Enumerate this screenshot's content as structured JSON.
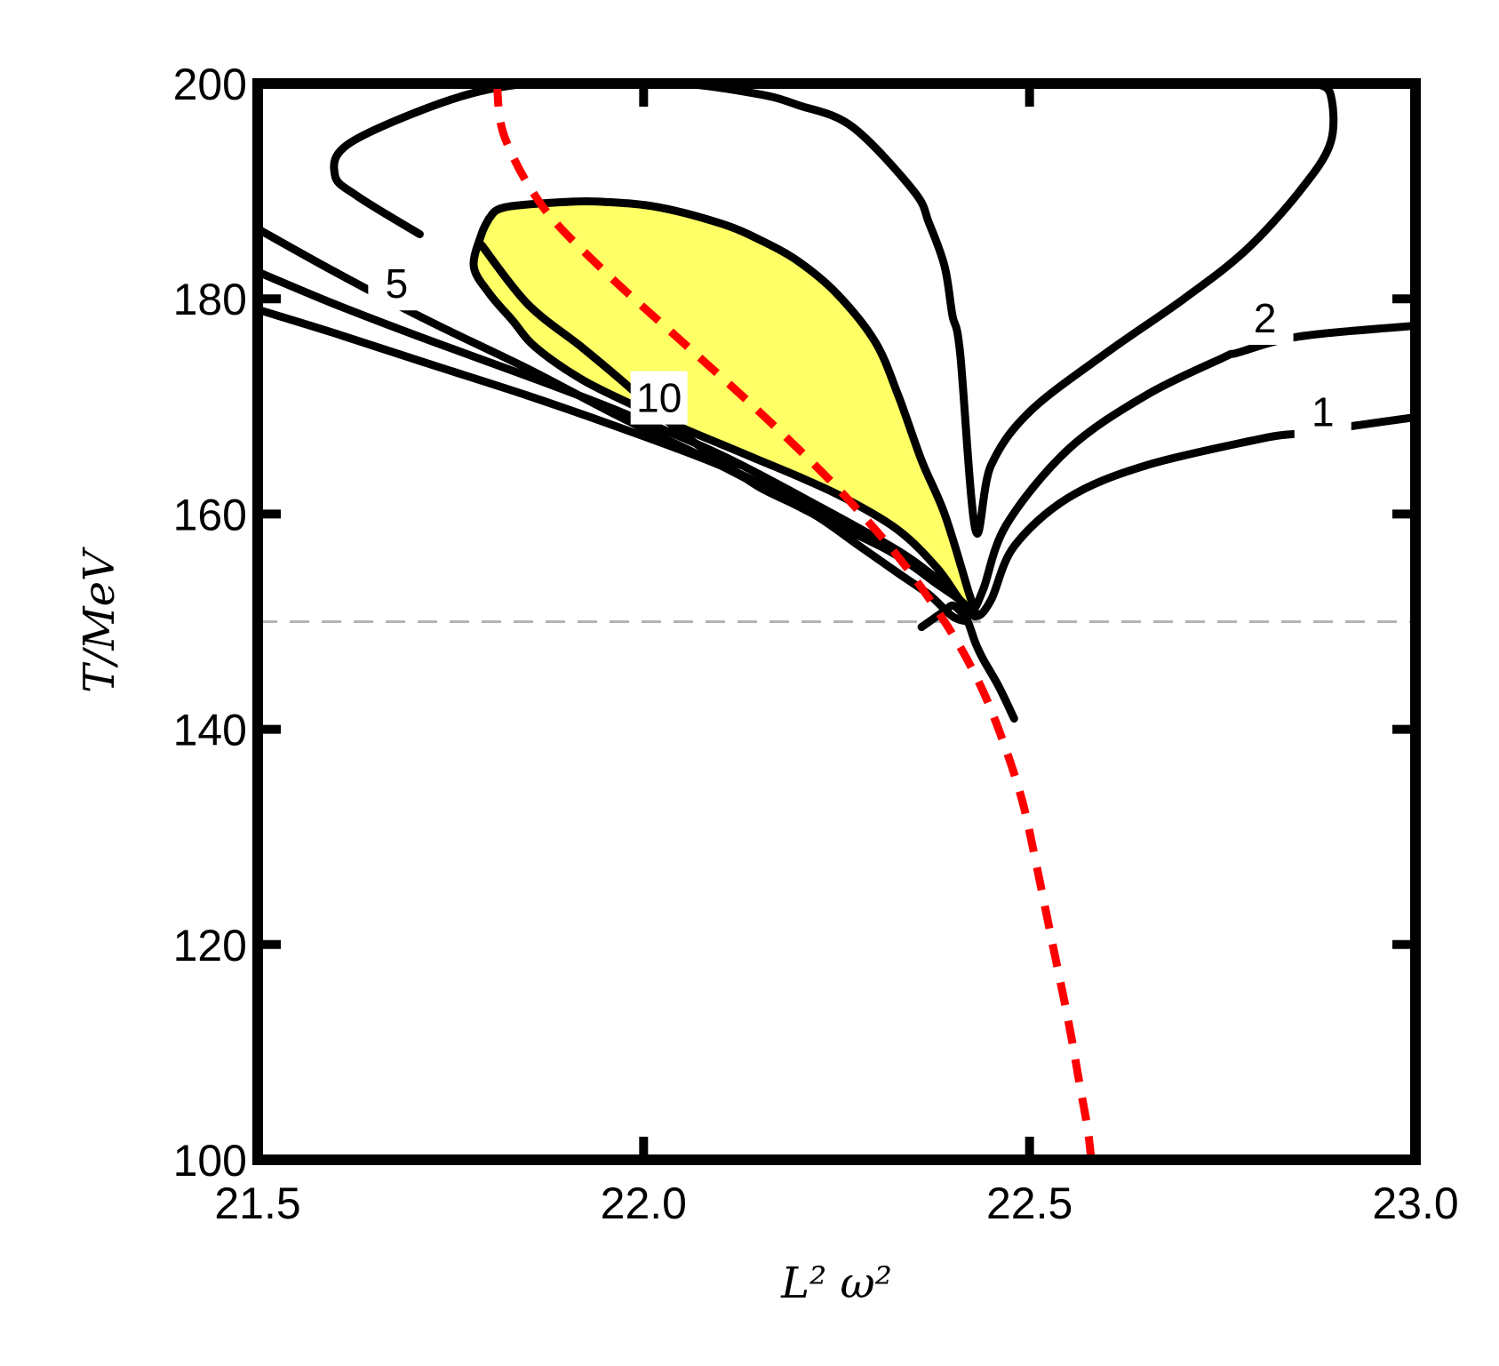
{
  "chart_data": {
    "type": "contour",
    "xlabel": "L² ω²",
    "ylabel": "T/MeV",
    "xlim": [
      21.5,
      23.0
    ],
    "ylim": [
      100,
      200
    ],
    "x_ticks": [
      "21.5",
      "22.0",
      "22.5",
      "23.0"
    ],
    "y_ticks": [
      "100",
      "120",
      "140",
      "160",
      "180",
      "200"
    ],
    "reference_line": {
      "y": 150,
      "style": "dashed",
      "color": "#b3b3b3"
    },
    "colors": {
      "contour": "#000000",
      "critical_curve": "#ff0000",
      "fill": "#ffff66",
      "reference": "#b3b3b3"
    },
    "series": [
      {
        "kind": "contour",
        "level": "1",
        "label_at": [
          22.88,
          169.5
        ],
        "x": [
          21.5,
          21.6,
          21.72,
          21.85,
          21.97,
          22.1,
          22.22,
          22.32,
          22.38,
          22.41,
          22.43,
          22.45,
          22.48,
          22.55,
          22.65,
          22.8,
          22.85,
          22.93,
          23.0
        ],
        "y": [
          179,
          176.8,
          174,
          171,
          168,
          164.5,
          160.5,
          157,
          154,
          152,
          150.5,
          152,
          157,
          161.5,
          164.5,
          167,
          167.5,
          168.3,
          169
        ]
      },
      {
        "kind": "contour",
        "level": "2",
        "label_at": [
          22.805,
          178.2
        ],
        "x": [
          21.5,
          21.6,
          21.72,
          21.85,
          21.97,
          22.1,
          22.22,
          22.32,
          22.38,
          22.41,
          22.425,
          22.44,
          22.47,
          22.55,
          22.65,
          22.75,
          22.77,
          22.85,
          23.0
        ],
        "y": [
          182.5,
          179.5,
          176.2,
          172.8,
          169.5,
          165.5,
          161,
          157,
          154,
          152,
          151,
          153,
          159,
          166,
          171,
          174.5,
          175,
          176.5,
          177.5
        ]
      },
      {
        "kind": "contour",
        "level": "5",
        "label_at": [
          21.68,
          181.4
        ],
        "x": [
          21.71,
          21.63,
          21.6,
          21.62,
          21.75,
          21.85,
          21.95,
          22.05,
          22.15,
          22.2,
          22.27,
          22.35,
          22.37,
          22.39,
          22.4,
          22.41,
          22.43,
          22.45,
          22.5,
          22.6,
          22.7,
          22.78,
          22.85,
          22.89,
          22.89,
          22.87
        ],
        "y": [
          186,
          189.5,
          191.5,
          194.5,
          198.5,
          200,
          200,
          200,
          199,
          198,
          196,
          190,
          187,
          183,
          178.5,
          175,
          158.5,
          164.5,
          169.5,
          175,
          180,
          184.5,
          190,
          194.5,
          199,
          200
        ]
      },
      {
        "kind": "contour",
        "level": "",
        "label_at": null,
        "x": [
          21.5,
          21.6,
          21.72,
          21.85,
          21.97,
          22.1,
          22.22,
          22.32,
          22.38,
          22.41,
          22.43
        ],
        "y": [
          186.5,
          182.5,
          178,
          173.5,
          169,
          164.5,
          160,
          156.5,
          153.5,
          152,
          150.5
        ]
      },
      {
        "kind": "contour",
        "level": "10",
        "label_at": [
          22.02,
          170.8
        ],
        "x": [
          21.79,
          21.85,
          21.92,
          21.97,
          22.05,
          22.1,
          22.15,
          22.22,
          22.28,
          22.33,
          22.37,
          22.4,
          22.42
        ],
        "y": [
          185,
          179.5,
          175.5,
          172.5,
          167.5,
          165,
          162.5,
          160,
          157,
          154.5,
          152.5,
          150.5,
          150
        ]
      },
      {
        "kind": "contour",
        "level": "",
        "label_at": null,
        "x": [
          22.48,
          22.46,
          22.44,
          22.43,
          22.42,
          22.41,
          22.4,
          22.39,
          22.38,
          22.36
        ],
        "y": [
          141,
          144,
          146.5,
          148,
          150,
          151,
          151.5,
          151,
          150.5,
          149.5
        ]
      },
      {
        "kind": "filled_region",
        "level": "",
        "label_at": null,
        "x": [
          21.8,
          21.82,
          21.9,
          21.95,
          22.02,
          22.1,
          22.15,
          22.2,
          22.25,
          22.3,
          22.33,
          22.36,
          22.39,
          22.42,
          22.43,
          22.41,
          22.38,
          22.33,
          22.26,
          22.2,
          22.15,
          22.1,
          22.05,
          21.99,
          21.92,
          21.86,
          21.83,
          21.8,
          21.78,
          21.79,
          21.8
        ],
        "y": [
          187.5,
          188.5,
          189,
          189,
          188.5,
          187,
          185.5,
          183.5,
          180.5,
          176,
          171,
          165,
          160,
          153,
          150.5,
          152,
          155,
          158.5,
          161.5,
          163.5,
          165,
          166.5,
          168,
          170,
          172.5,
          175.5,
          178,
          180.5,
          183,
          186,
          187.5
        ]
      },
      {
        "kind": "critical_curve",
        "level": "",
        "label_at": null,
        "x": [
          21.81,
          21.82,
          21.87,
          21.95,
          22.05,
          22.15,
          22.25,
          22.33,
          22.39,
          22.43,
          22.46,
          22.49,
          22.51,
          22.53,
          22.55,
          22.565,
          22.575,
          22.58
        ],
        "y": [
          200,
          195,
          188.5,
          182.5,
          176,
          169.5,
          162.5,
          156,
          150,
          145,
          140,
          133.5,
          127,
          120,
          113,
          107,
          103,
          100
        ]
      }
    ]
  }
}
